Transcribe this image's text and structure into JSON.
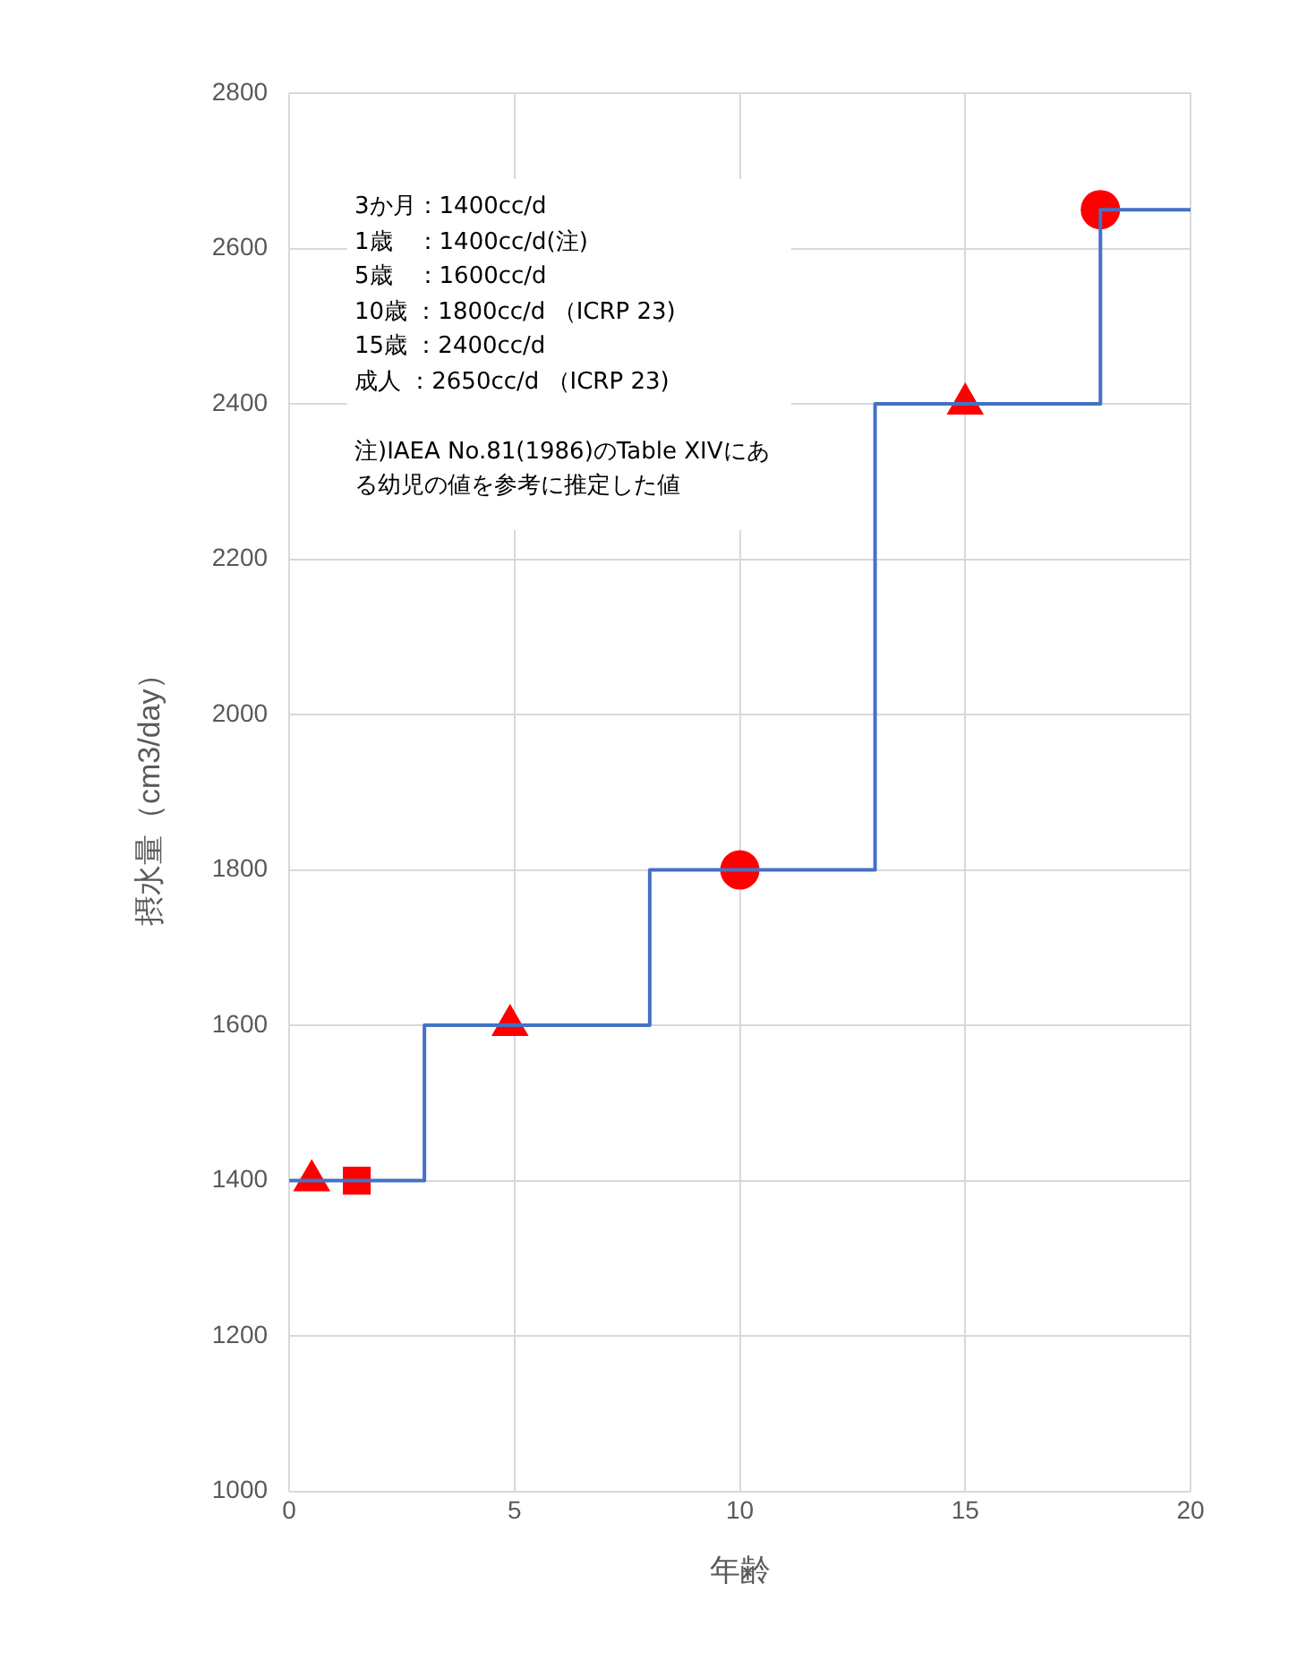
{
  "chart_data": {
    "type": "step",
    "xlabel": "年齢",
    "ylabel": "摂水量（cm3/day）",
    "xlim": [
      0,
      20
    ],
    "xticks": [
      0,
      5,
      10,
      15,
      20
    ],
    "ylim": [
      1000,
      2800
    ],
    "yticks": [
      1000,
      1200,
      1400,
      1600,
      1800,
      2000,
      2200,
      2400,
      2600,
      2800
    ],
    "grid": true,
    "annotations": [
      "3か月：1400cc/d",
      "1歳　：1400cc/d(注)",
      "5歳　：1600cc/d",
      "10歳 ：1800cc/d （ICRP 23)",
      "15歳 ：2400cc/d",
      "成人 ：2650cc/d （ICRP 23)",
      "注)IAEA No.81(1986)のTable XIVにある幼児の値を参考に推定した値"
    ],
    "series": [
      {
        "color": "#4472c4",
        "marker": "none",
        "x": [
          0,
          3,
          8,
          13,
          18,
          20
        ],
        "values": [
          1400,
          1600,
          1800,
          2400,
          2650,
          2650
        ]
      },
      {
        "type": "scatter",
        "color": "#ff0000",
        "marker": "triangle",
        "x": [
          0.5,
          4.9,
          15
        ],
        "values": [
          1400,
          1600,
          2400
        ]
      },
      {
        "type": "scatter",
        "color": "#ff0000",
        "marker": "square",
        "x": [
          1.5
        ],
        "values": [
          1400
        ]
      },
      {
        "type": "scatter",
        "color": "#ff0000",
        "marker": "circle",
        "x": [
          10,
          18
        ],
        "values": [
          1800,
          2650
        ]
      }
    ]
  }
}
